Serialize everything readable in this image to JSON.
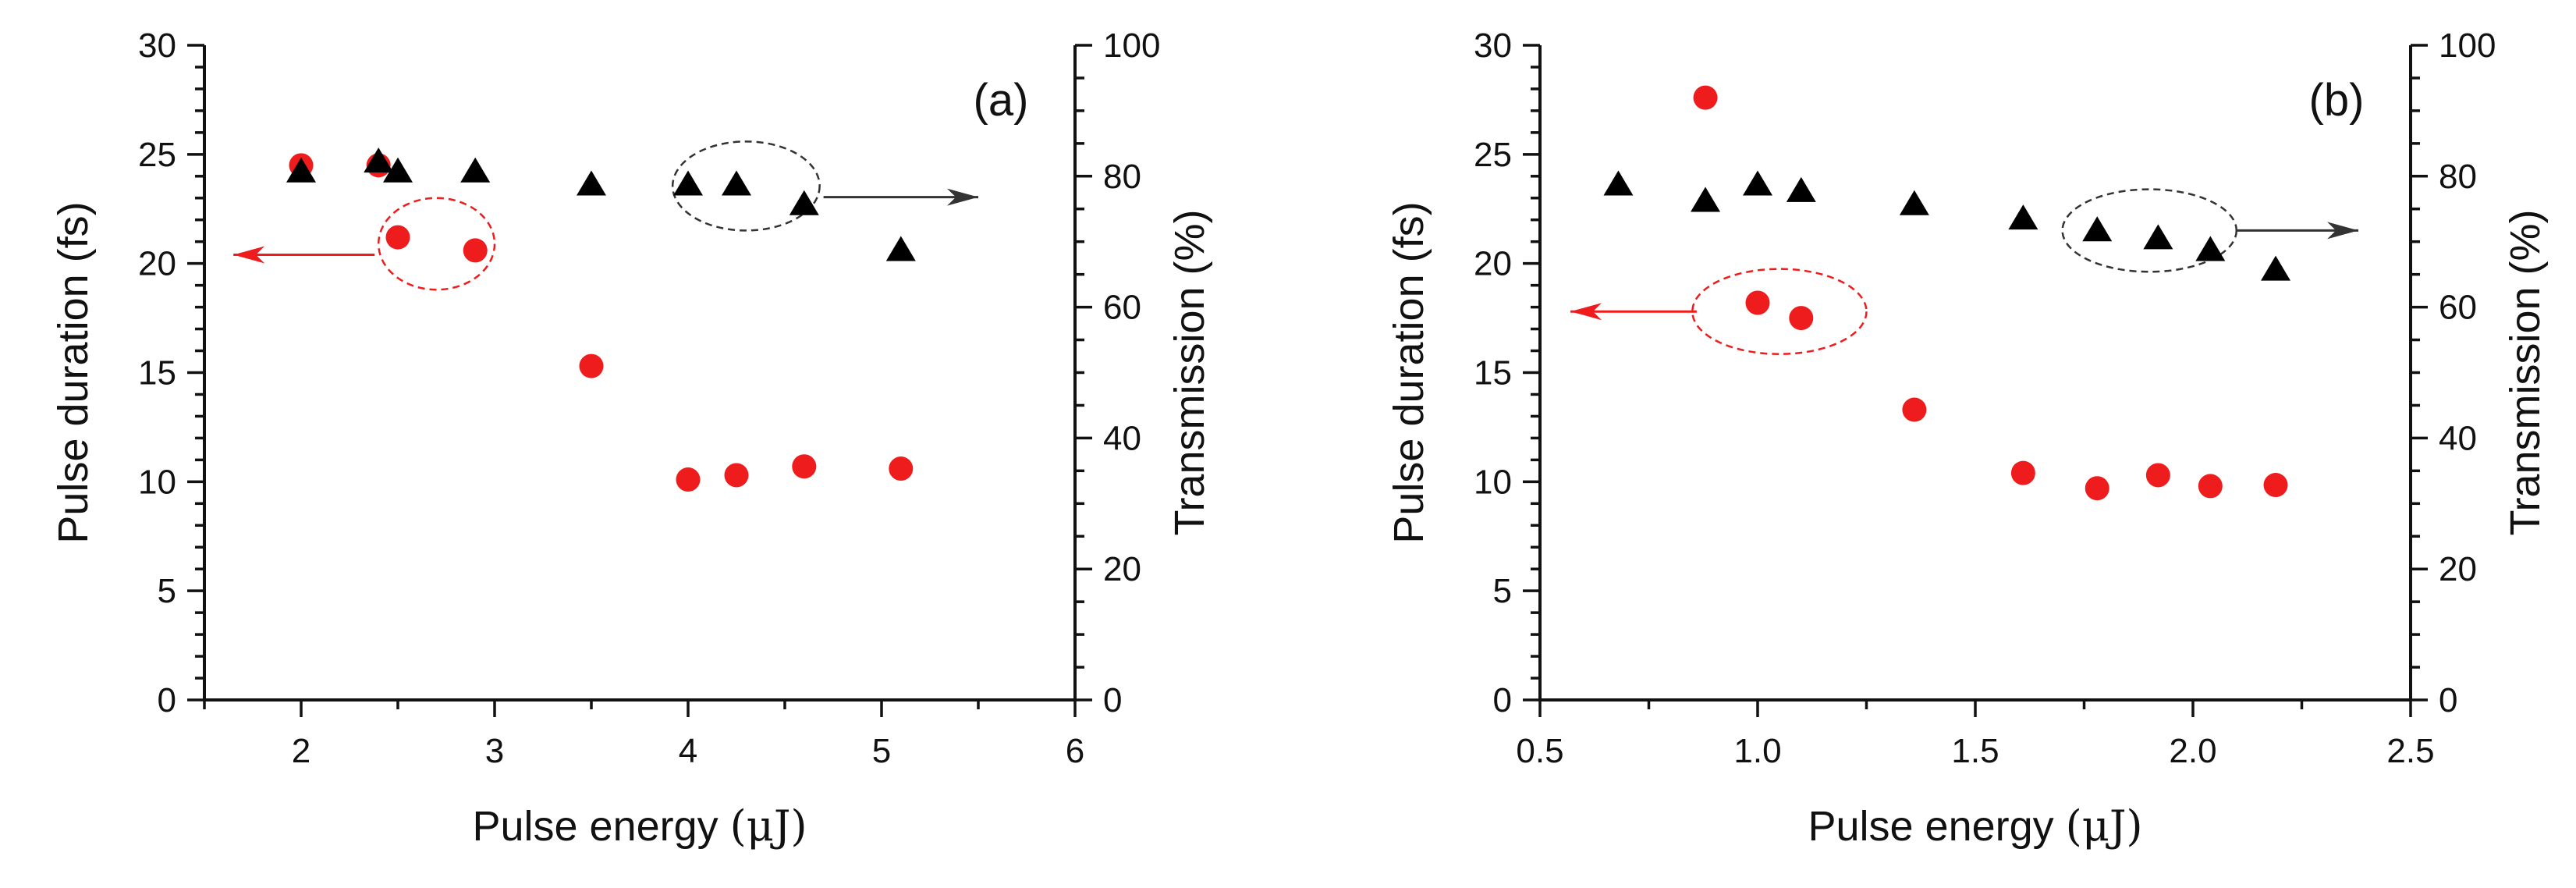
{
  "chart_data": [
    {
      "type": "scatter",
      "panel_label": "(a)",
      "xlabel_prefix": "Pulse energy ",
      "xlabel_unit": "(μJ)",
      "ylabel_left": "Pulse duration (fs)",
      "ylabel_right": "Transmission (%)",
      "xlim": [
        1.5,
        6
      ],
      "ylim_left": [
        0,
        30
      ],
      "ylim_right": [
        0,
        100
      ],
      "x_ticks": [
        2,
        3,
        4,
        5,
        6
      ],
      "x_tick_labels": [
        "2",
        "3",
        "4",
        "5",
        "6"
      ],
      "x_minor_step": 0.5,
      "y_left_ticks": [
        0,
        5,
        10,
        15,
        20,
        25,
        30
      ],
      "y_left_tick_labels": [
        "0",
        "5",
        "10",
        "15",
        "20",
        "25",
        "30"
      ],
      "y_left_minor_step": 1,
      "y_right_ticks": [
        0,
        20,
        40,
        60,
        80,
        100
      ],
      "y_right_tick_labels": [
        "0",
        "20",
        "40",
        "60",
        "80",
        "100"
      ],
      "y_right_minor_step": 5,
      "grid": false,
      "series": [
        {
          "name": "Pulse duration",
          "axis": "left",
          "marker": "circle",
          "color": "#ee1c1c",
          "points": [
            [
              2.0,
              24.5
            ],
            [
              2.4,
              24.5
            ],
            [
              2.5,
              21.2
            ],
            [
              2.9,
              20.6
            ],
            [
              3.5,
              15.3
            ],
            [
              4.0,
              10.1
            ],
            [
              4.25,
              10.3
            ],
            [
              4.6,
              10.7
            ],
            [
              5.1,
              10.6
            ]
          ]
        },
        {
          "name": "Transmission",
          "axis": "right",
          "marker": "triangle",
          "color": "#000000",
          "points": [
            [
              2.0,
              80.5
            ],
            [
              2.4,
              82.0
            ],
            [
              2.5,
              80.5
            ],
            [
              2.9,
              80.5
            ],
            [
              3.5,
              78.5
            ],
            [
              4.0,
              78.5
            ],
            [
              4.25,
              78.5
            ],
            [
              4.6,
              75.5
            ],
            [
              5.1,
              68.5
            ]
          ]
        }
      ],
      "annotations": [
        {
          "series": "Pulse duration",
          "direction": "left",
          "color": "#ee1c1c",
          "ellipse_center": [
            2.7,
            20.9
          ],
          "ellipse_radii": [
            0.3,
            2.1
          ],
          "arrow_from": [
            2.38,
            20.4
          ],
          "arrow_to": [
            1.65,
            20.4
          ]
        },
        {
          "series": "Transmission",
          "direction": "right",
          "color": "#333333",
          "ellipse_center": [
            4.3,
            78.5
          ],
          "ellipse_radii": [
            0.38,
            6.8
          ],
          "arrow_from": [
            4.7,
            76.8
          ],
          "arrow_to": [
            5.5,
            76.8
          ]
        }
      ]
    },
    {
      "type": "scatter",
      "panel_label": "(b)",
      "xlabel_prefix": "Pulse energy ",
      "xlabel_unit": "(μJ)",
      "ylabel_left": "Pulse duration (fs)",
      "ylabel_right": "Transmission (%)",
      "xlim": [
        0.5,
        2.5
      ],
      "ylim_left": [
        0,
        30
      ],
      "ylim_right": [
        0,
        100
      ],
      "x_ticks": [
        0.5,
        1.0,
        1.5,
        2.0,
        2.5
      ],
      "x_tick_labels": [
        "0.5",
        "1.0",
        "1.5",
        "2.0",
        "2.5"
      ],
      "x_minor_step": 0.25,
      "y_left_ticks": [
        0,
        5,
        10,
        15,
        20,
        25,
        30
      ],
      "y_left_tick_labels": [
        "0",
        "5",
        "10",
        "15",
        "20",
        "25",
        "30"
      ],
      "y_left_minor_step": 1,
      "y_right_ticks": [
        0,
        20,
        40,
        60,
        80,
        100
      ],
      "y_right_tick_labels": [
        "0",
        "20",
        "40",
        "60",
        "80",
        "100"
      ],
      "y_right_minor_step": 5,
      "grid": false,
      "series": [
        {
          "name": "Pulse duration",
          "axis": "left",
          "marker": "circle",
          "color": "#ee1c1c",
          "points": [
            [
              0.88,
              27.6
            ],
            [
              1.0,
              18.2
            ],
            [
              1.1,
              17.5
            ],
            [
              1.36,
              13.3
            ],
            [
              1.61,
              10.4
            ],
            [
              1.78,
              9.7
            ],
            [
              1.92,
              10.3
            ],
            [
              2.04,
              9.8
            ],
            [
              2.19,
              9.85
            ]
          ]
        },
        {
          "name": "Transmission",
          "axis": "right",
          "marker": "triangle",
          "color": "#000000",
          "points": [
            [
              0.68,
              78.5
            ],
            [
              0.88,
              76.0
            ],
            [
              1.0,
              78.5
            ],
            [
              1.1,
              77.5
            ],
            [
              1.36,
              75.5
            ],
            [
              1.61,
              73.3
            ],
            [
              1.78,
              71.5
            ],
            [
              1.92,
              70.3
            ],
            [
              2.04,
              68.5
            ],
            [
              2.19,
              65.5
            ]
          ]
        }
      ],
      "annotations": [
        {
          "series": "Pulse duration",
          "direction": "left",
          "color": "#ee1c1c",
          "ellipse_center": [
            1.05,
            17.8
          ],
          "ellipse_radii": [
            0.2,
            1.95
          ],
          "arrow_from": [
            0.86,
            17.8
          ],
          "arrow_to": [
            0.57,
            17.8
          ]
        },
        {
          "series": "Transmission",
          "direction": "right",
          "color": "#333333",
          "ellipse_center": [
            1.9,
            71.7
          ],
          "ellipse_radii": [
            0.2,
            6.3
          ],
          "arrow_from": [
            2.1,
            71.7
          ],
          "arrow_to": [
            2.38,
            71.7
          ]
        }
      ]
    }
  ]
}
